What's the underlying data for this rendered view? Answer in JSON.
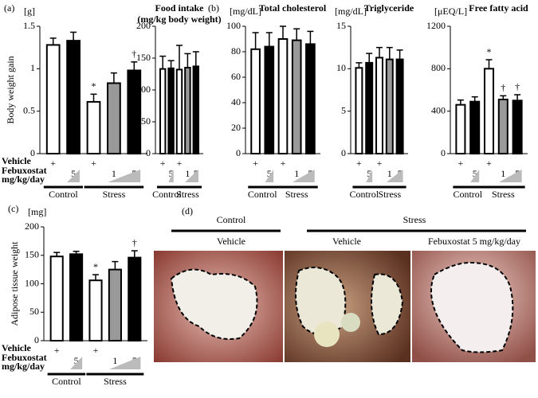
{
  "chart_data": [
    {
      "type": "bar",
      "panel_label": "(a)",
      "y_unit": "[g]",
      "ylabel": "Body weight gain",
      "ylim": [
        0,
        1.5
      ],
      "yticks": [
        0,
        0.5,
        1,
        1.5
      ],
      "values": [
        1.28,
        1.33,
        0.61,
        0.83,
        0.98
      ],
      "errors": [
        0.08,
        0.1,
        0.09,
        0.12,
        0.1
      ],
      "colors": [
        "#ffffff",
        "#000000",
        "#ffffff",
        "#999999",
        "#000000"
      ],
      "bar_annotations": [
        null,
        null,
        "*",
        null,
        "†"
      ],
      "row_labels": [
        "Vehicle",
        "Febuxostat",
        "mg/kg/day"
      ],
      "vehicle_marks": [
        "+",
        null,
        "+",
        null,
        null
      ],
      "dose_labels": [
        null,
        "5",
        null,
        "1",
        "5"
      ],
      "groups": [
        "Control",
        "Stress"
      ]
    },
    {
      "type": "bar",
      "title": "Food intake",
      "subtitle": "(mg/kg body weight)",
      "ylim": [
        0,
        200
      ],
      "yticks": [
        0,
        50,
        100,
        150,
        200
      ],
      "values": [
        133,
        134,
        132,
        135,
        137
      ],
      "errors": [
        20,
        12,
        38,
        22,
        23
      ],
      "colors": [
        "#ffffff",
        "#000000",
        "#ffffff",
        "#999999",
        "#000000"
      ],
      "vehicle_marks": [
        "+",
        null,
        "+",
        null,
        null
      ],
      "dose_labels": [
        null,
        "5",
        null,
        "1",
        "5"
      ],
      "groups": [
        "Control",
        "Stress"
      ]
    },
    {
      "type": "bar",
      "panel_label": "(b)",
      "title": "Total cholesterol",
      "y_unit": "[mg/dL]",
      "ylim": [
        0,
        100
      ],
      "yticks": [
        0,
        20,
        40,
        60,
        80,
        100
      ],
      "values": [
        82,
        84,
        90,
        89,
        86
      ],
      "errors": [
        13,
        11,
        10,
        9,
        10
      ],
      "colors": [
        "#ffffff",
        "#000000",
        "#ffffff",
        "#999999",
        "#000000"
      ],
      "vehicle_marks": [
        "+",
        null,
        "+",
        null,
        null
      ],
      "dose_labels": [
        null,
        "5",
        null,
        "1",
        "5"
      ],
      "groups": [
        "Control",
        "Stress"
      ]
    },
    {
      "type": "bar",
      "title": "Triglyceride",
      "y_unit": "[mg/dL]",
      "ylim": [
        0,
        15
      ],
      "yticks": [
        0,
        5,
        10,
        15
      ],
      "values": [
        10.1,
        10.7,
        11.3,
        11.1,
        11.1
      ],
      "errors": [
        0.6,
        1.1,
        1.2,
        1.4,
        1.1
      ],
      "colors": [
        "#ffffff",
        "#000000",
        "#ffffff",
        "#999999",
        "#000000"
      ],
      "vehicle_marks": [
        "+",
        null,
        "+",
        null,
        null
      ],
      "dose_labels": [
        null,
        "5",
        null,
        "1",
        "5"
      ],
      "groups": [
        "Control",
        "Stress"
      ]
    },
    {
      "type": "bar",
      "title": "Free fatty acid",
      "y_unit": "[μEQ/L]",
      "ylim": [
        0,
        1200
      ],
      "yticks": [
        0,
        400,
        800,
        1200
      ],
      "values": [
        460,
        490,
        800,
        510,
        500
      ],
      "errors": [
        45,
        45,
        85,
        35,
        55
      ],
      "colors": [
        "#ffffff",
        "#000000",
        "#ffffff",
        "#999999",
        "#000000"
      ],
      "bar_annotations": [
        null,
        null,
        "*",
        "†",
        "†"
      ],
      "vehicle_marks": [
        "+",
        null,
        "+",
        null,
        null
      ],
      "dose_labels": [
        null,
        "5",
        null,
        "1",
        "5"
      ],
      "groups": [
        "Control",
        "Stress"
      ]
    },
    {
      "type": "bar",
      "panel_label": "(c)",
      "y_unit": "[mg]",
      "ylabel": "Adipose tissue weight",
      "ylim": [
        0,
        200
      ],
      "yticks": [
        0,
        50,
        100,
        150,
        200
      ],
      "values": [
        148,
        152,
        106,
        125,
        146
      ],
      "errors": [
        7,
        5,
        10,
        14,
        12
      ],
      "colors": [
        "#ffffff",
        "#000000",
        "#ffffff",
        "#999999",
        "#000000"
      ],
      "bar_annotations": [
        null,
        null,
        "*",
        null,
        "†"
      ],
      "row_labels": [
        "Vehicle",
        "Febuxostat",
        "mg/kg/day"
      ],
      "vehicle_marks": [
        "+",
        null,
        "+",
        null,
        null
      ],
      "dose_labels": [
        null,
        "5",
        null,
        "1",
        "5"
      ],
      "groups": [
        "Control",
        "Stress"
      ]
    }
  ],
  "photo_panel": {
    "panel_label": "(d)",
    "groups": [
      "Control",
      "Stress"
    ],
    "image_labels": [
      "Vehicle",
      "Vehicle",
      "Febuxostat 5 mg/kg/day"
    ]
  }
}
